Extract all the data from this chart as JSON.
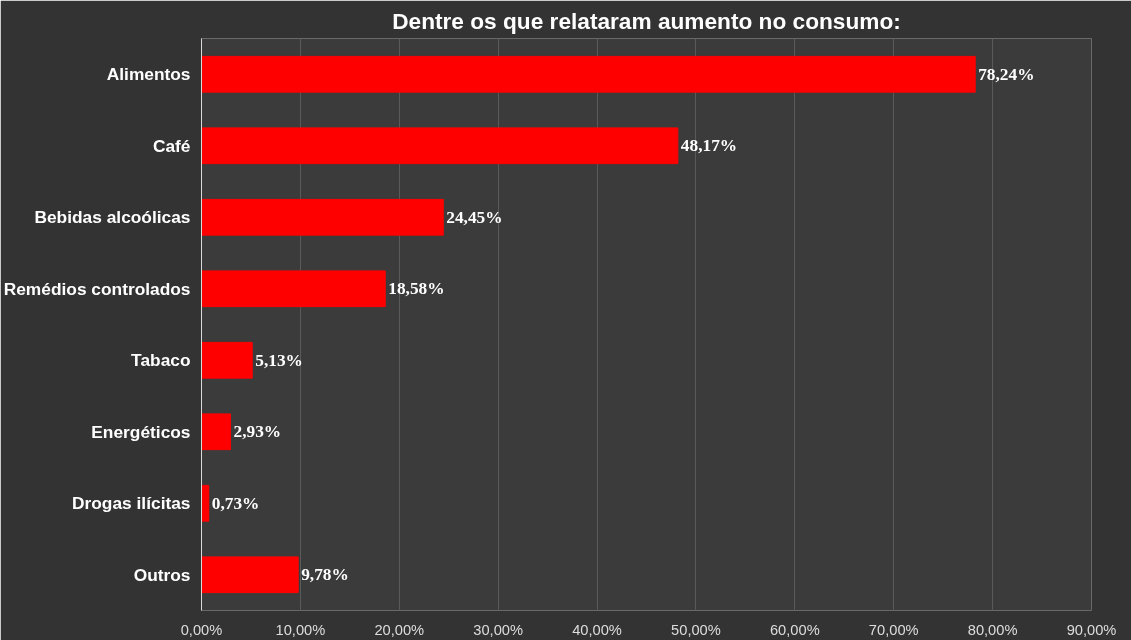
{
  "chart_data": {
    "type": "bar",
    "orientation": "horizontal",
    "title": "Dentre os que relataram aumento no consumo:",
    "categories": [
      "Alimentos",
      "Café",
      "Bebidas alcoólicas",
      "Remédios controlados",
      "Tabaco",
      "Energéticos",
      "Drogas ilícitas",
      "Outros"
    ],
    "values": [
      78.24,
      48.17,
      24.45,
      18.58,
      5.13,
      2.93,
      0.73,
      9.78
    ],
    "value_labels": [
      "78,24%",
      "48,17%",
      "24,45%",
      "18,58%",
      "5,13%",
      "2,93%",
      "0,73%",
      "9,78%"
    ],
    "color": "#ff0000",
    "xlim": [
      0,
      90
    ],
    "xticks": [
      {
        "value": 0,
        "label": "0,00%"
      },
      {
        "value": 10,
        "label": "10,00%"
      },
      {
        "value": 20,
        "label": "20,00%"
      },
      {
        "value": 30,
        "label": "30,00%"
      },
      {
        "value": 40,
        "label": "40,00%"
      },
      {
        "value": 50,
        "label": "50,00%"
      },
      {
        "value": 60,
        "label": "60,00%"
      },
      {
        "value": 70,
        "label": "70,00%"
      },
      {
        "value": 80,
        "label": "80,00%"
      },
      {
        "value": 90,
        "label": "90,00%"
      }
    ],
    "grid": "x"
  }
}
